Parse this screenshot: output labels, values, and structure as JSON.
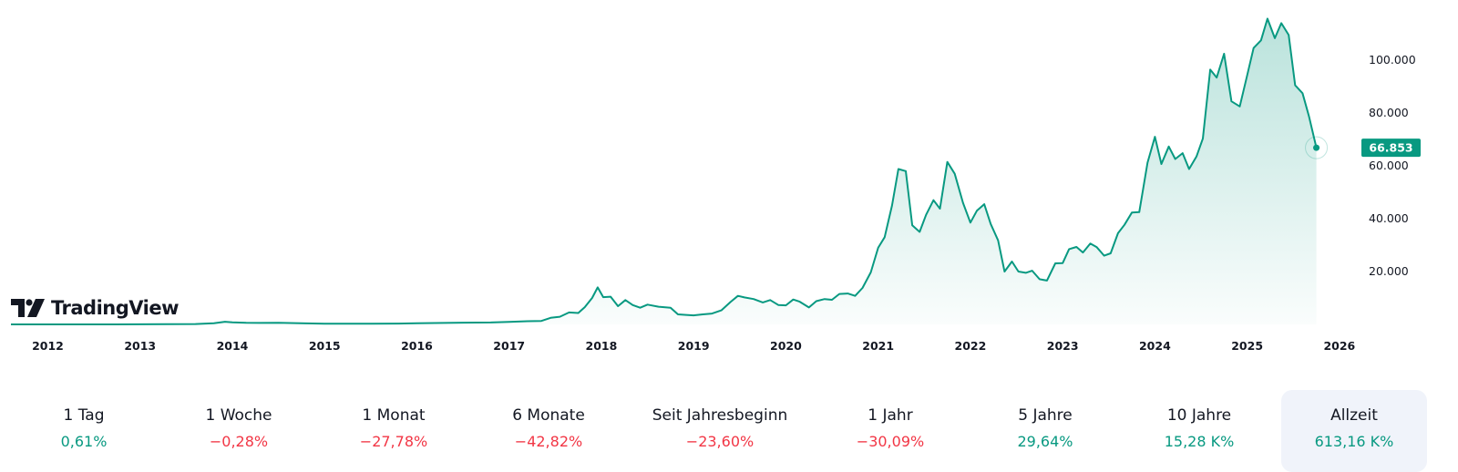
{
  "brand": {
    "name": "TradingView",
    "logo_icon": "tradingview-logo-icon"
  },
  "colors": {
    "line": "#089981",
    "fill_top": "#089981",
    "positive": "#089981",
    "negative": "#f23645",
    "active_bg": "#f0f3fa"
  },
  "chart_data": {
    "type": "area",
    "y_axis": {
      "ticks": [
        20000,
        40000,
        60000,
        80000,
        100000
      ],
      "tick_labels": [
        "20.000",
        "40.000",
        "60.000",
        "80.000",
        "100.000"
      ],
      "position": "right"
    },
    "x_axis": {
      "ticks": [
        2012,
        2013,
        2014,
        2015,
        2016,
        2017,
        2018,
        2019,
        2020,
        2021,
        2022,
        2023,
        2024,
        2025,
        2026
      ],
      "tick_labels": [
        "2012",
        "2013",
        "2014",
        "2015",
        "2016",
        "2017",
        "2018",
        "2019",
        "2020",
        "2021",
        "2022",
        "2023",
        "2024",
        "2025",
        "2026"
      ]
    },
    "ylim": [
      0,
      120000
    ],
    "xlim": [
      2011.6,
      2026.1
    ],
    "last_price": 66853,
    "last_price_label": "66.853",
    "series": [
      {
        "points": [
          [
            2011.6,
            5
          ],
          [
            2012.0,
            5
          ],
          [
            2012.5,
            7
          ],
          [
            2013.0,
            20
          ],
          [
            2013.3,
            100
          ],
          [
            2013.6,
            130
          ],
          [
            2013.8,
            400
          ],
          [
            2013.92,
            1000
          ],
          [
            2014.0,
            800
          ],
          [
            2014.15,
            600
          ],
          [
            2014.3,
            550
          ],
          [
            2014.5,
            600
          ],
          [
            2014.8,
            380
          ],
          [
            2015.0,
            250
          ],
          [
            2015.5,
            240
          ],
          [
            2015.8,
            300
          ],
          [
            2016.0,
            400
          ],
          [
            2016.5,
            650
          ],
          [
            2016.8,
            720
          ],
          [
            2017.0,
            950
          ],
          [
            2017.2,
            1200
          ],
          [
            2017.35,
            1300
          ],
          [
            2017.45,
            2500
          ],
          [
            2017.55,
            2900
          ],
          [
            2017.65,
            4500
          ],
          [
            2017.75,
            4300
          ],
          [
            2017.82,
            6500
          ],
          [
            2017.9,
            10000
          ],
          [
            2017.96,
            14000
          ],
          [
            2018.02,
            10300
          ],
          [
            2018.1,
            10500
          ],
          [
            2018.18,
            6900
          ],
          [
            2018.26,
            9200
          ],
          [
            2018.34,
            7300
          ],
          [
            2018.42,
            6300
          ],
          [
            2018.5,
            7500
          ],
          [
            2018.62,
            6700
          ],
          [
            2018.75,
            6300
          ],
          [
            2018.83,
            3800
          ],
          [
            2018.92,
            3600
          ],
          [
            2019.0,
            3400
          ],
          [
            2019.1,
            3800
          ],
          [
            2019.2,
            4100
          ],
          [
            2019.3,
            5300
          ],
          [
            2019.4,
            8500
          ],
          [
            2019.48,
            10800
          ],
          [
            2019.55,
            10200
          ],
          [
            2019.65,
            9600
          ],
          [
            2019.75,
            8300
          ],
          [
            2019.83,
            9200
          ],
          [
            2019.92,
            7300
          ],
          [
            2020.0,
            7200
          ],
          [
            2020.08,
            9400
          ],
          [
            2020.15,
            8600
          ],
          [
            2020.25,
            6400
          ],
          [
            2020.33,
            8800
          ],
          [
            2020.42,
            9600
          ],
          [
            2020.5,
            9300
          ],
          [
            2020.58,
            11500
          ],
          [
            2020.67,
            11700
          ],
          [
            2020.75,
            10800
          ],
          [
            2020.83,
            13800
          ],
          [
            2020.92,
            19700
          ],
          [
            2021.0,
            29000
          ],
          [
            2021.07,
            33000
          ],
          [
            2021.15,
            45000
          ],
          [
            2021.22,
            58800
          ],
          [
            2021.3,
            58000
          ],
          [
            2021.37,
            37500
          ],
          [
            2021.45,
            35000
          ],
          [
            2021.52,
            41500
          ],
          [
            2021.6,
            47000
          ],
          [
            2021.67,
            43800
          ],
          [
            2021.75,
            61500
          ],
          [
            2021.83,
            57000
          ],
          [
            2021.92,
            46000
          ],
          [
            2022.0,
            38500
          ],
          [
            2022.07,
            43000
          ],
          [
            2022.15,
            45500
          ],
          [
            2022.22,
            38000
          ],
          [
            2022.3,
            31800
          ],
          [
            2022.37,
            20000
          ],
          [
            2022.45,
            23800
          ],
          [
            2022.52,
            20000
          ],
          [
            2022.6,
            19500
          ],
          [
            2022.67,
            20300
          ],
          [
            2022.75,
            17100
          ],
          [
            2022.83,
            16600
          ],
          [
            2022.92,
            23100
          ],
          [
            2023.0,
            23200
          ],
          [
            2023.07,
            28500
          ],
          [
            2023.15,
            29300
          ],
          [
            2023.22,
            27200
          ],
          [
            2023.3,
            30600
          ],
          [
            2023.37,
            29200
          ],
          [
            2023.45,
            26000
          ],
          [
            2023.52,
            26900
          ],
          [
            2023.6,
            34500
          ],
          [
            2023.67,
            37700
          ],
          [
            2023.75,
            42300
          ],
          [
            2023.83,
            42500
          ],
          [
            2023.92,
            61200
          ],
          [
            2024.0,
            71000
          ],
          [
            2024.07,
            60700
          ],
          [
            2024.15,
            67300
          ],
          [
            2024.22,
            62600
          ],
          [
            2024.3,
            64800
          ],
          [
            2024.37,
            58800
          ],
          [
            2024.45,
            63500
          ],
          [
            2024.52,
            70300
          ],
          [
            2024.6,
            96400
          ],
          [
            2024.67,
            93400
          ],
          [
            2024.75,
            102400
          ],
          [
            2024.83,
            84400
          ],
          [
            2024.92,
            82500
          ],
          [
            2025.0,
            94200
          ],
          [
            2025.07,
            104600
          ],
          [
            2025.15,
            107500
          ],
          [
            2025.22,
            115700
          ],
          [
            2025.3,
            108300
          ],
          [
            2025.37,
            114000
          ],
          [
            2025.45,
            109500
          ],
          [
            2025.52,
            90500
          ],
          [
            2025.6,
            87500
          ],
          [
            2025.67,
            78700
          ],
          [
            2025.75,
            66853
          ]
        ]
      }
    ]
  },
  "periods": [
    {
      "label": "1 Tag",
      "value": "0,61%",
      "sign": "pos"
    },
    {
      "label": "1 Woche",
      "value": "−0,28%",
      "sign": "neg"
    },
    {
      "label": "1 Monat",
      "value": "−27,78%",
      "sign": "neg"
    },
    {
      "label": "6 Monate",
      "value": "−42,82%",
      "sign": "neg"
    },
    {
      "label": "Seit Jahresbeginn",
      "value": "−23,60%",
      "sign": "neg"
    },
    {
      "label": "1 Jahr",
      "value": "−30,09%",
      "sign": "neg"
    },
    {
      "label": "5 Jahre",
      "value": "29,64%",
      "sign": "pos"
    },
    {
      "label": "10 Jahre",
      "value": "15,28 K%",
      "sign": "pos"
    },
    {
      "label": "Allzeit",
      "value": "613,16 K%",
      "sign": "pos",
      "active": true
    }
  ]
}
